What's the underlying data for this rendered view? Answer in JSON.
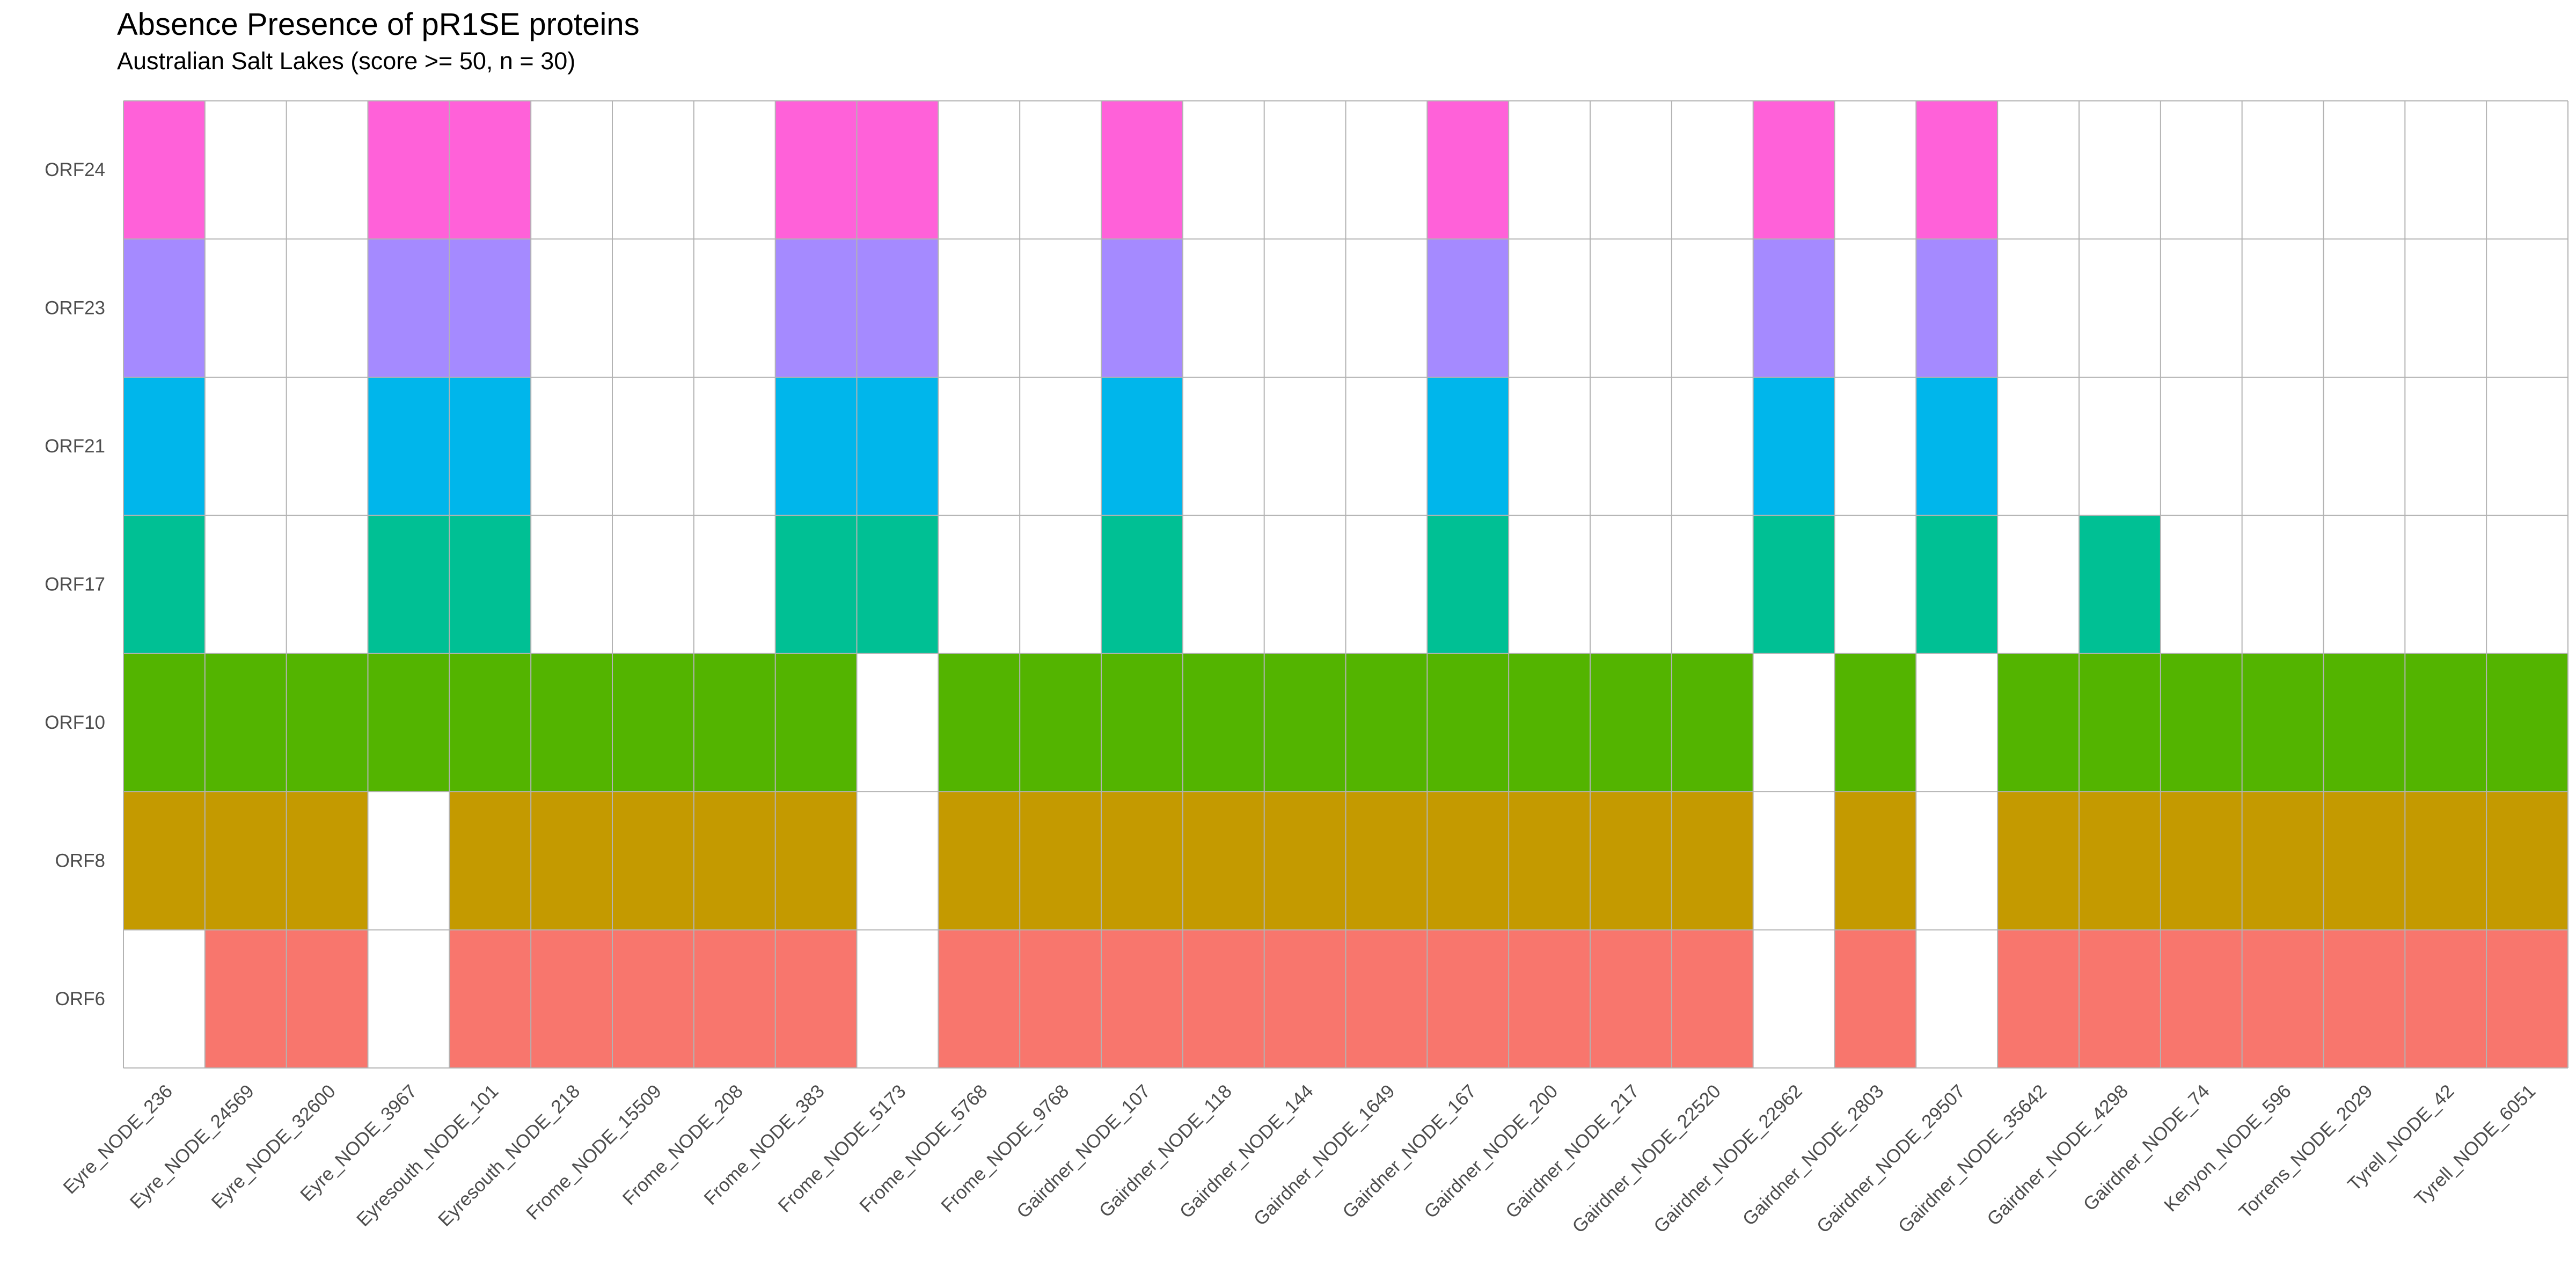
{
  "chart_data": {
    "type": "heatmap",
    "title": "Absence Presence of pR1SE proteins",
    "subtitle": "Australian Salt Lakes (score >= 50, n = 30)",
    "grid": true,
    "legend": "none",
    "x_categories": [
      "Eyre_NODE_236",
      "Eyre_NODE_24569",
      "Eyre_NODE_32600",
      "Eyre_NODE_3967",
      "Eyresouth_NODE_101",
      "Eyresouth_NODE_218",
      "Frome_NODE_15509",
      "Frome_NODE_208",
      "Frome_NODE_383",
      "Frome_NODE_5173",
      "Frome_NODE_5768",
      "Frome_NODE_9768",
      "Gairdner_NODE_107",
      "Gairdner_NODE_118",
      "Gairdner_NODE_144",
      "Gairdner_NODE_1649",
      "Gairdner_NODE_167",
      "Gairdner_NODE_200",
      "Gairdner_NODE_217",
      "Gairdner_NODE_22520",
      "Gairdner_NODE_22962",
      "Gairdner_NODE_2803",
      "Gairdner_NODE_29507",
      "Gairdner_NODE_35642",
      "Gairdner_NODE_4298",
      "Gairdner_NODE_74",
      "Kenyon_NODE_596",
      "Torrens_NODE_2029",
      "Tyrell_NODE_42",
      "Tyrell_NODE_6051"
    ],
    "y_categories": [
      "ORF24",
      "ORF23",
      "ORF21",
      "ORF17",
      "ORF10",
      "ORF8",
      "ORF6"
    ],
    "row_colors": {
      "ORF24": "#FF61D9",
      "ORF23": "#A58AFF",
      "ORF21": "#00B6EB",
      "ORF17": "#00C094",
      "ORF10": "#53B400",
      "ORF8": "#C49A00",
      "ORF6": "#F8766D"
    },
    "presence": {
      "ORF24": [
        1,
        0,
        0,
        1,
        1,
        0,
        0,
        0,
        1,
        1,
        0,
        0,
        1,
        0,
        0,
        0,
        1,
        0,
        0,
        0,
        1,
        0,
        1,
        0,
        0,
        0,
        0,
        0,
        0,
        0
      ],
      "ORF23": [
        1,
        0,
        0,
        1,
        1,
        0,
        0,
        0,
        1,
        1,
        0,
        0,
        1,
        0,
        0,
        0,
        1,
        0,
        0,
        0,
        1,
        0,
        1,
        0,
        0,
        0,
        0,
        0,
        0,
        0
      ],
      "ORF21": [
        1,
        0,
        0,
        1,
        1,
        0,
        0,
        0,
        1,
        1,
        0,
        0,
        1,
        0,
        0,
        0,
        1,
        0,
        0,
        0,
        1,
        0,
        1,
        0,
        0,
        0,
        0,
        0,
        0,
        0
      ],
      "ORF17": [
        1,
        0,
        0,
        1,
        1,
        0,
        0,
        0,
        1,
        1,
        0,
        0,
        1,
        0,
        0,
        0,
        1,
        0,
        0,
        0,
        1,
        0,
        1,
        0,
        1,
        0,
        0,
        0,
        0,
        0
      ],
      "ORF10": [
        1,
        1,
        1,
        1,
        1,
        1,
        1,
        1,
        1,
        0,
        1,
        1,
        1,
        1,
        1,
        1,
        1,
        1,
        1,
        1,
        0,
        1,
        0,
        1,
        1,
        1,
        1,
        1,
        1,
        1
      ],
      "ORF8": [
        1,
        1,
        1,
        0,
        1,
        1,
        1,
        1,
        1,
        0,
        1,
        1,
        1,
        1,
        1,
        1,
        1,
        1,
        1,
        1,
        0,
        1,
        0,
        1,
        1,
        1,
        1,
        1,
        1,
        1
      ],
      "ORF6": [
        0,
        1,
        1,
        0,
        1,
        1,
        1,
        1,
        1,
        0,
        1,
        1,
        1,
        1,
        1,
        1,
        1,
        1,
        1,
        1,
        0,
        1,
        0,
        1,
        1,
        1,
        1,
        1,
        1,
        1
      ]
    }
  }
}
